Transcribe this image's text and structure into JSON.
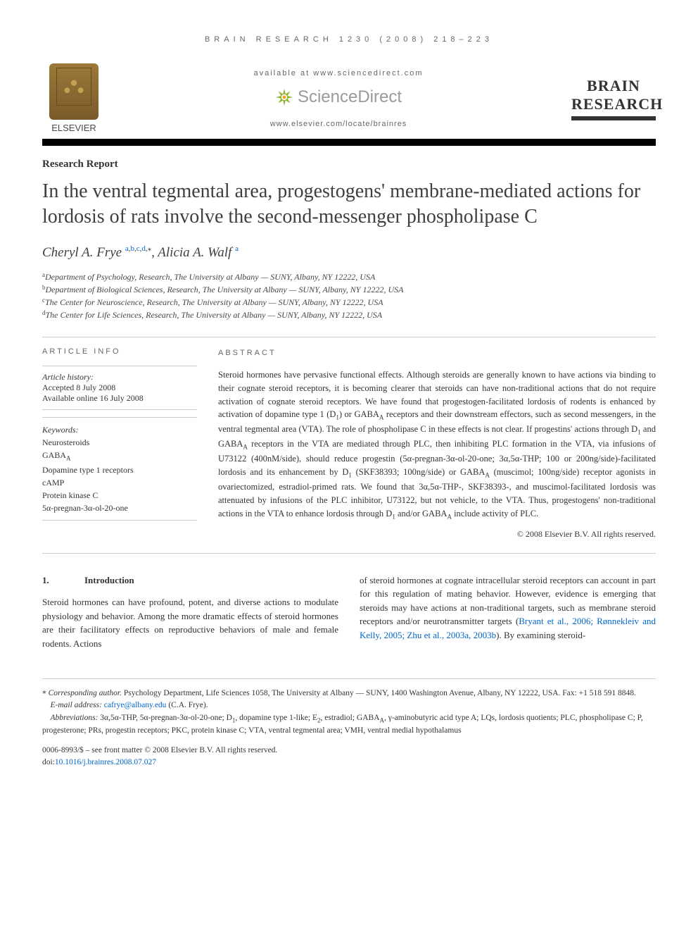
{
  "journal_header": "BRAIN RESEARCH 1230 (2008) 218–223",
  "top": {
    "elsevier": "ELSEVIER",
    "available": "available at www.sciencedirect.com",
    "sciencedirect": "ScienceDirect",
    "locate": "www.elsevier.com/locate/brainres",
    "j_brain": "BRAIN",
    "j_research": "RESEARCH"
  },
  "report_type": "Research Report",
  "title": "In the ventral tegmental area, progestogens' membrane-mediated actions for lordosis of rats involve the second-messenger phospholipase C",
  "authors_html": "Cheryl A. Frye <span class='sup'><a>a</a>,<a>b</a>,<a>c</a>,<a>d</a>,</span><span class='sup'>⁎</span>, Alicia A. Walf <span class='sup'><a>a</a></span>",
  "affils": {
    "a": "Department of Psychology, Research, The University at Albany — SUNY, Albany, NY 12222, USA",
    "b": "Department of Biological Sciences, Research, The University at Albany — SUNY, Albany, NY 12222, USA",
    "c": "The Center for Neuroscience, Research, The University at Albany — SUNY, Albany, NY 12222, USA",
    "d": "The Center for Life Sciences, Research, The University at Albany — SUNY, Albany, NY 12222, USA"
  },
  "info": {
    "head": "ARTICLE INFO",
    "history_label": "Article history:",
    "accepted": "Accepted 8 July 2008",
    "online": "Available online 16 July 2008",
    "keywords_label": "Keywords:",
    "keywords": [
      "Neurosteroids",
      "GABAA",
      "Dopamine type 1 receptors",
      "cAMP",
      "Protein kinase C",
      "5α-pregnan-3α-ol-20-one"
    ]
  },
  "abstract": {
    "head": "ABSTRACT",
    "text": "Steroid hormones have pervasive functional effects. Although steroids are generally known to have actions via binding to their cognate steroid receptors, it is becoming clearer that steroids can have non-traditional actions that do not require activation of cognate steroid receptors. We have found that progestogen-facilitated lordosis of rodents is enhanced by activation of dopamine type 1 (D1) or GABAA receptors and their downstream effectors, such as second messengers, in the ventral tegmental area (VTA). The role of phospholipase C in these effects is not clear. If progestins' actions through D1 and GABAA receptors in the VTA are mediated through PLC, then inhibiting PLC formation in the VTA, via infusions of U73122 (400nM/side), should reduce progestin (5α-pregnan-3α-ol-20-one; 3α,5α-THP; 100 or 200ng/side)-facilitated lordosis and its enhancement by D1 (SKF38393; 100ng/side) or GABAA (muscimol; 100ng/side) receptor agonists in ovariectomized, estradiol-primed rats. We found that 3α,5α-THP-, SKF38393-, and muscimol-facilitated lordosis was attenuated by infusions of the PLC inhibitor, U73122, but not vehicle, to the VTA. Thus, progestogens' non-traditional actions in the VTA to enhance lordosis through D1 and/or GABAA include activity of PLC.",
    "copyright": "© 2008 Elsevier B.V. All rights reserved."
  },
  "intro": {
    "num": "1.",
    "head": "Introduction",
    "col1": "Steroid hormones can have profound, potent, and diverse actions to modulate physiology and behavior. Among the more dramatic effects of steroid hormones are their facilitatory effects on reproductive behaviors of male and female rodents. Actions",
    "col2_a": "of steroid hormones at cognate intracellular steroid receptors can account in part for this regulation of mating behavior. However, evidence is emerging that steroids may have actions at non-traditional targets, such as membrane steroid receptors and/or neurotransmitter targets (",
    "col2_refs": "Bryant et al., 2006; Rønnekleiv and Kelly, 2005; Zhu et al., 2003a, 2003b",
    "col2_b": "). By examining steroid-"
  },
  "footer": {
    "corresponding_label": "Corresponding author.",
    "corresponding": " Psychology Department, Life Sciences 1058, The University at Albany — SUNY, 1400 Washington Avenue, Albany, NY 12222, USA. Fax: +1 518 591 8848.",
    "email_label": "E-mail address: ",
    "email": "cafrye@albany.edu",
    "email_tail": " (C.A. Frye).",
    "abbrev_label": "Abbreviations:",
    "abbrev": " 3α,5α-THP, 5α-pregnan-3α-ol-20-one; D1, dopamine type 1-like; E2, estradiol; GABAA, γ-aminobutyric acid type A; LQs, lordosis quotients; PLC, phospholipase C; P, progesterone; PRs, progestin receptors; PKC, protein kinase C; VTA, ventral tegmental area; VMH, ventral medial hypothalamus",
    "front_matter": "0006-8993/$ – see front matter © 2008 Elsevier B.V. All rights reserved.",
    "doi_label": "doi:",
    "doi": "10.1016/j.brainres.2008.07.027"
  },
  "colors": {
    "text": "#333333",
    "link": "#0066cc",
    "muted": "#666666",
    "rule_heavy": "#000000",
    "rule_light": "#cccccc",
    "elsevier_orange": "#e98b2a",
    "sd_green": "#8fb536",
    "sd_orange": "#f5a623"
  }
}
